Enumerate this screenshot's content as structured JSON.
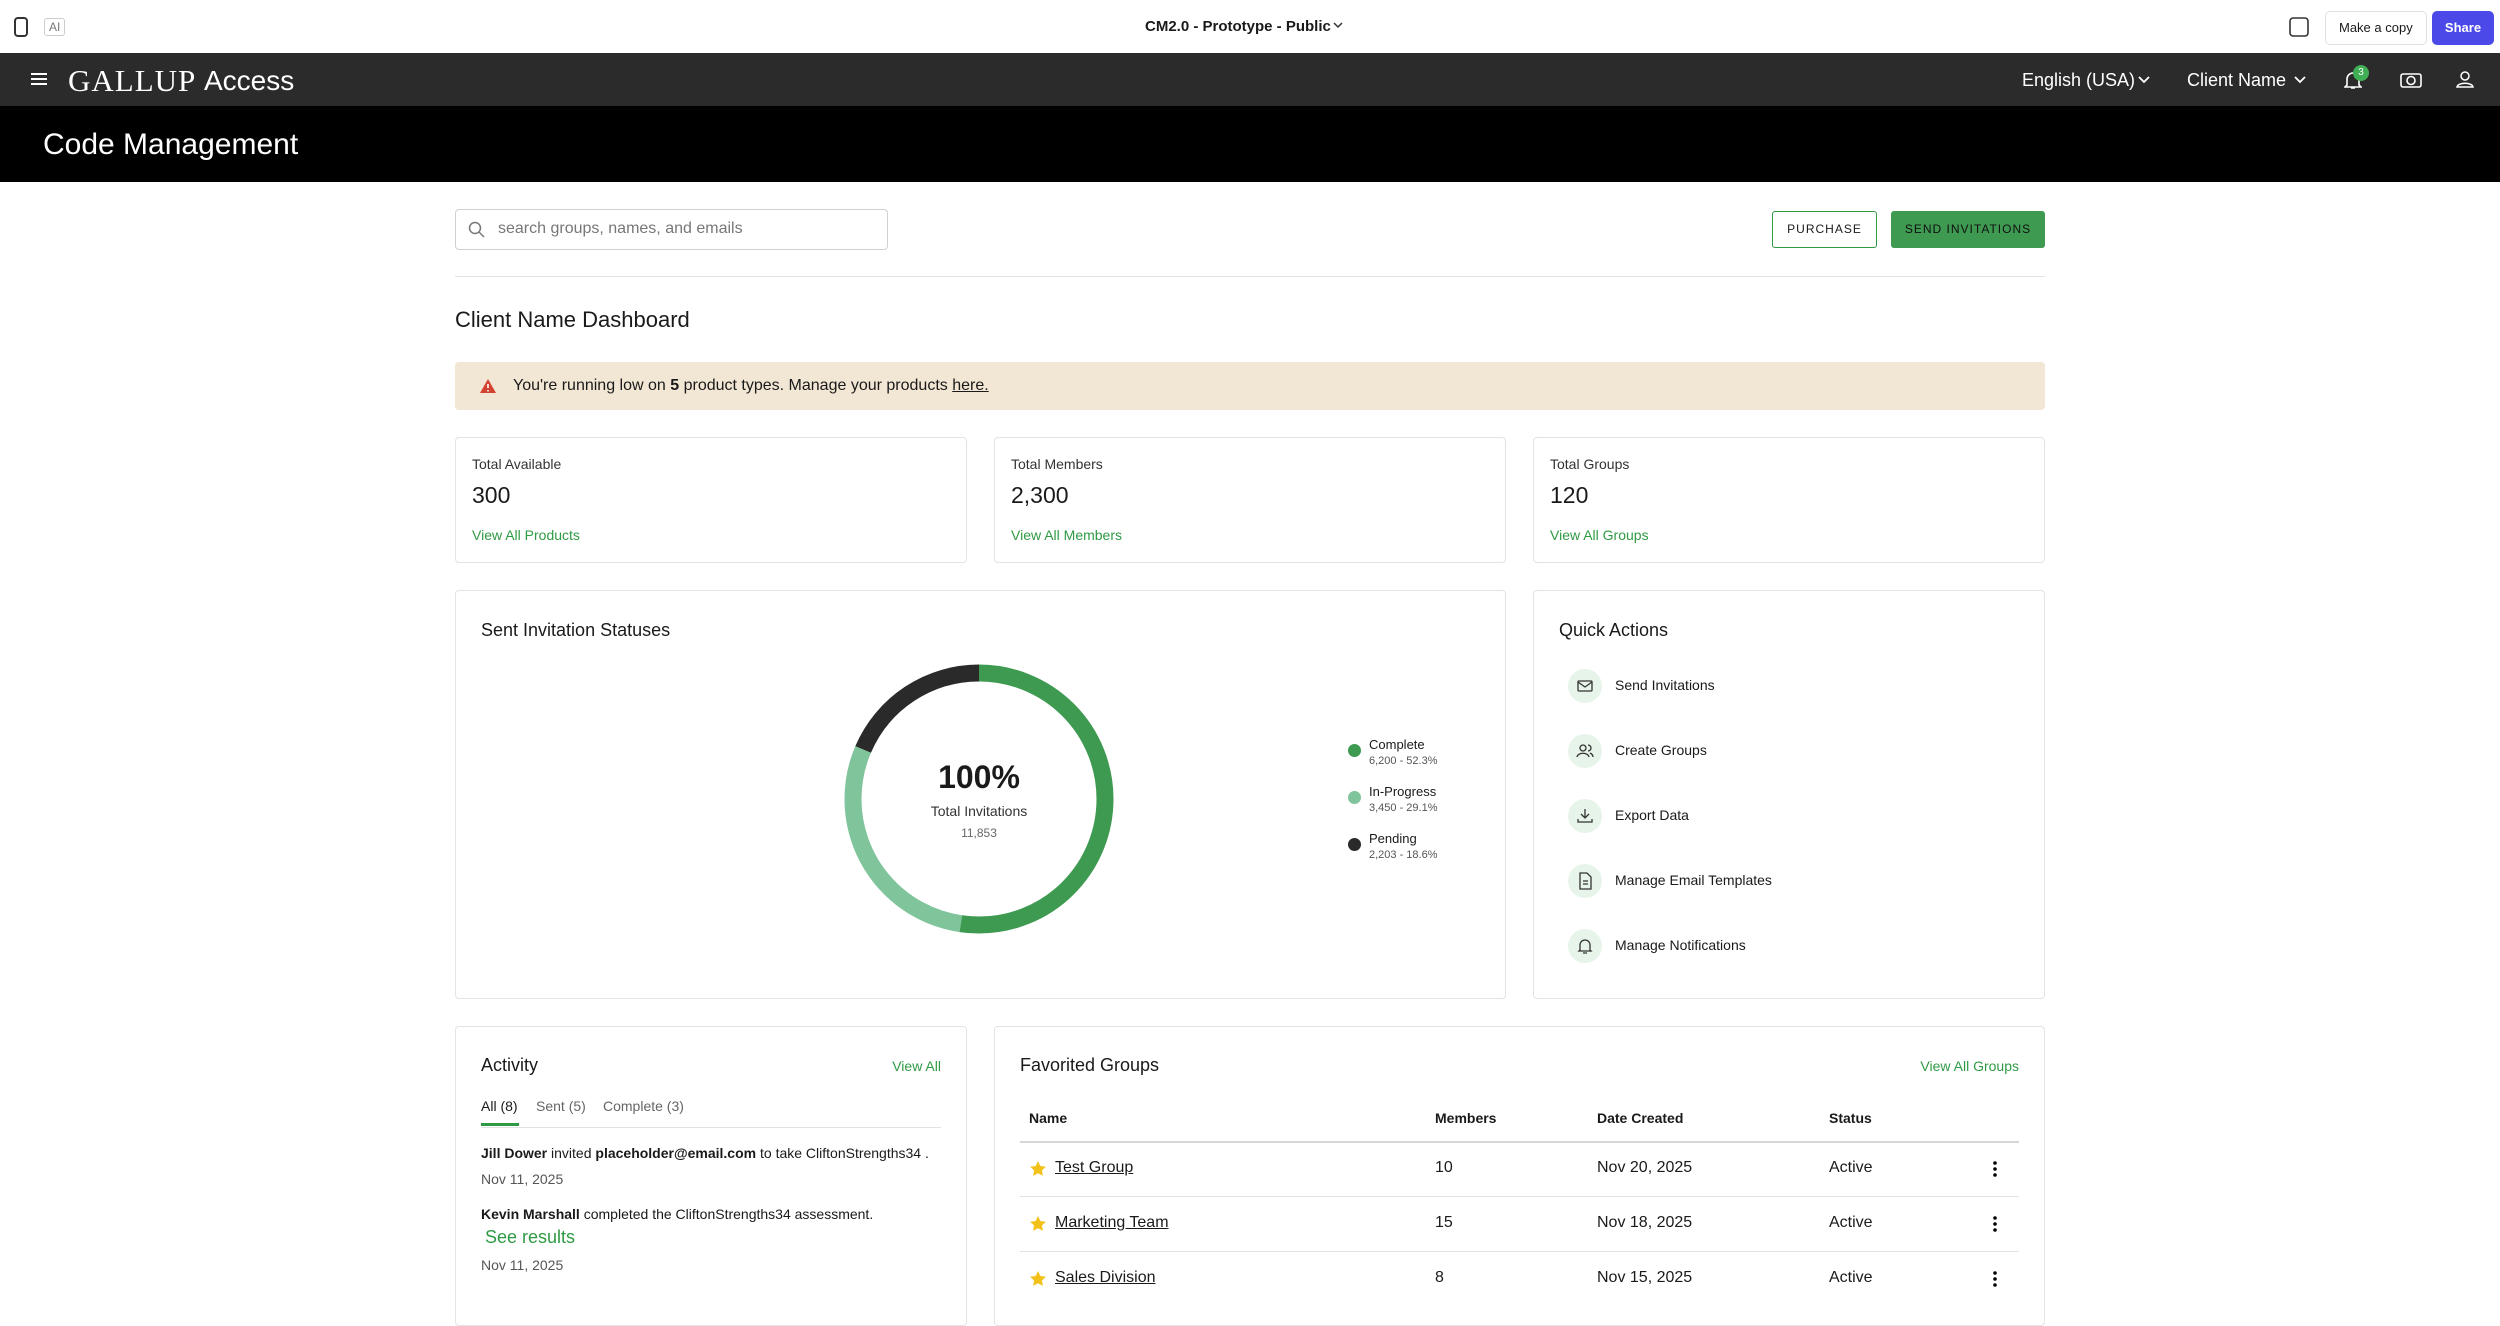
{
  "figma_bar": {
    "title": "CM2.0 - Prototype - Public",
    "ai": "AI",
    "copy_button": "Make a copy",
    "share_button": "Share"
  },
  "nav": {
    "brand": "GALLUP",
    "product": "Access",
    "language": "English (USA)",
    "client": "Client Name",
    "notifications": "3"
  },
  "header": {
    "title": "Code Management"
  },
  "toolbar": {
    "search_placeholder": "search groups, names, and emails",
    "purchase": "PURCHASE",
    "send": "SEND INVITATIONS"
  },
  "dashboard": {
    "title": "Client Name Dashboard"
  },
  "alert": {
    "pre": "You're running low on",
    "count": "5",
    "post": "product types. Manage your products",
    "link": "here."
  },
  "stats": [
    {
      "label": "Total Available",
      "value": "300",
      "link": "View All Products"
    },
    {
      "label": "Total Members",
      "value": "2,300",
      "link": "View All Members"
    },
    {
      "label": "Total Groups",
      "value": "120",
      "link": "View All Groups"
    }
  ],
  "invitations": {
    "title": "Sent Invitation Statuses",
    "total_label": "100%",
    "caption": "Total Invitations",
    "count": "11,853",
    "segments": [
      {
        "name": "Complete",
        "detail": "6,200 - 52.3%",
        "percent": 52.3,
        "color": "#3e9a51"
      },
      {
        "name": "In-Progress",
        "detail": "3,450 - 29.1%",
        "percent": 29.1,
        "color": "#7fc49a"
      },
      {
        "name": "Pending",
        "detail": "2,203 - 18.6%",
        "percent": 18.6,
        "color": "#2a2a2a"
      }
    ]
  },
  "quick_actions": {
    "title": "Quick Actions",
    "items": [
      "Send Invitations",
      "Create Groups",
      "Export Data",
      "Manage Email Templates",
      "Manage Notifications"
    ]
  },
  "activity": {
    "title": "Activity",
    "view_all": "View All",
    "tabs": [
      "All (8)",
      "Sent (5)",
      "Complete (3)"
    ],
    "items": [
      {
        "actor": "Jill Dower",
        "verb": "invited",
        "target": "placeholder@email.com",
        "rest": "to take CliftonStrengths34 .",
        "date": "Nov 11, 2025"
      },
      {
        "actor": "Kevin Marshall",
        "verb": "completed the CliftonStrengths34 assessment.",
        "link": "See results",
        "date": "Nov 11, 2025"
      }
    ]
  },
  "favorites": {
    "title": "Favorited Groups",
    "view_all": "View All Groups",
    "columns": [
      "Name",
      "Members",
      "Date Created",
      "Status"
    ],
    "rows": [
      [
        "Test Group",
        "10",
        "Nov 20, 2025",
        "Active"
      ],
      [
        "Marketing Team",
        "15",
        "Nov 18, 2025",
        "Active"
      ],
      [
        "Sales Division",
        "8",
        "Nov 15, 2025",
        "Active"
      ]
    ]
  }
}
